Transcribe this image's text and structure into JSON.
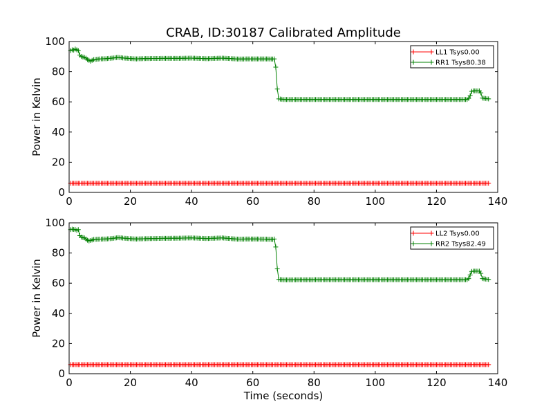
{
  "figure": {
    "title": "CRAB, ID:30187 Calibrated Amplitude"
  },
  "chart_data": [
    {
      "type": "line",
      "title": "CRAB, ID:30187 Calibrated Amplitude",
      "xlabel": "",
      "ylabel": "Power in Kelvin",
      "xlim": [
        0,
        140
      ],
      "ylim": [
        0,
        100
      ],
      "xticks": [
        "0",
        "20",
        "40",
        "60",
        "80",
        "100",
        "120",
        "140"
      ],
      "yticks": [
        "0",
        "20",
        "40",
        "60",
        "80",
        "100"
      ],
      "grid": false,
      "legend_position": "top-right",
      "series": [
        {
          "name": "LL1 Tsys0.00",
          "color": "#ff0000",
          "marker": "plus",
          "x_start": 0.5,
          "x_step": 0.5,
          "segments": [
            {
              "count": 274,
              "value": 6
            }
          ]
        },
        {
          "name": "RR1 Tsys80.38",
          "color": "#008000",
          "marker": "plus",
          "keypoints": [
            [
              0.5,
              94
            ],
            [
              1,
              94.5
            ],
            [
              1.5,
              94.3
            ],
            [
              2,
              95
            ],
            [
              2.5,
              94.5
            ],
            [
              3,
              94
            ],
            [
              3.5,
              91
            ],
            [
              4,
              90
            ],
            [
              5,
              89.5
            ],
            [
              5.5,
              89
            ],
            [
              6,
              88
            ],
            [
              6.5,
              87.5
            ],
            [
              7,
              87
            ],
            [
              8,
              88
            ],
            [
              10,
              88.5
            ],
            [
              12,
              88.6
            ],
            [
              14,
              89
            ],
            [
              16,
              89.5
            ],
            [
              18,
              89
            ],
            [
              20,
              88.7
            ],
            [
              22,
              88.5
            ],
            [
              25,
              88.7
            ],
            [
              30,
              88.8
            ],
            [
              35,
              88.8
            ],
            [
              40,
              89
            ],
            [
              45,
              88.6
            ],
            [
              50,
              89
            ],
            [
              55,
              88.4
            ],
            [
              60,
              88.5
            ],
            [
              64,
              88.5
            ],
            [
              66.5,
              88.4
            ],
            [
              67,
              88.5
            ],
            [
              67.5,
              83
            ],
            [
              68,
              68.5
            ],
            [
              68.5,
              62
            ],
            [
              70,
              61.6
            ],
            [
              80,
              61.6
            ],
            [
              100,
              61.6
            ],
            [
              120,
              61.6
            ],
            [
              130,
              61.6
            ],
            [
              130.5,
              62.3
            ],
            [
              131,
              64
            ],
            [
              131.5,
              67
            ],
            [
              132,
              67.3
            ],
            [
              134,
              67.3
            ],
            [
              134.5,
              66
            ],
            [
              135,
              62.5
            ],
            [
              137,
              62
            ]
          ]
        }
      ]
    },
    {
      "type": "line",
      "title": "",
      "xlabel": "Time (seconds)",
      "ylabel": "Power in Kelvin",
      "xlim": [
        0,
        140
      ],
      "ylim": [
        0,
        100
      ],
      "xticks": [
        "0",
        "20",
        "40",
        "60",
        "80",
        "100",
        "120",
        "140"
      ],
      "yticks": [
        "0",
        "20",
        "40",
        "60",
        "80",
        "100"
      ],
      "grid": false,
      "legend_position": "top-right",
      "series": [
        {
          "name": "LL2 Tsys0.00",
          "color": "#ff0000",
          "marker": "plus",
          "x_start": 0.5,
          "x_step": 0.5,
          "segments": [
            {
              "count": 274,
              "value": 6
            }
          ]
        },
        {
          "name": "RR2 Tsys82.49",
          "color": "#008000",
          "marker": "plus",
          "keypoints": [
            [
              0.5,
              95.5
            ],
            [
              1,
              95.8
            ],
            [
              2,
              95.5
            ],
            [
              2.5,
              95
            ],
            [
              3,
              95.5
            ],
            [
              3.5,
              91.5
            ],
            [
              4,
              90.5
            ],
            [
              5,
              90
            ],
            [
              6,
              88.5
            ],
            [
              6.5,
              88
            ],
            [
              7,
              88.3
            ],
            [
              8,
              89
            ],
            [
              10,
              89.2
            ],
            [
              12,
              89.3
            ],
            [
              14,
              89.6
            ],
            [
              16,
              90.2
            ],
            [
              18,
              89.8
            ],
            [
              20,
              89.5
            ],
            [
              22,
              89.3
            ],
            [
              25,
              89.5
            ],
            [
              30,
              89.7
            ],
            [
              35,
              89.8
            ],
            [
              40,
              90
            ],
            [
              45,
              89.6
            ],
            [
              50,
              90
            ],
            [
              55,
              89.2
            ],
            [
              60,
              89.3
            ],
            [
              64,
              89.2
            ],
            [
              66.5,
              89
            ],
            [
              67,
              89.3
            ],
            [
              67.5,
              84
            ],
            [
              68,
              69.5
            ],
            [
              68.5,
              62.5
            ],
            [
              70,
              62.2
            ],
            [
              80,
              62.3
            ],
            [
              100,
              62.3
            ],
            [
              120,
              62.3
            ],
            [
              130,
              62.3
            ],
            [
              130.5,
              63
            ],
            [
              131,
              65.5
            ],
            [
              131.5,
              67.8
            ],
            [
              132,
              68
            ],
            [
              134,
              68
            ],
            [
              134.5,
              66.5
            ],
            [
              135,
              63
            ],
            [
              137,
              62.5
            ]
          ]
        }
      ]
    }
  ]
}
